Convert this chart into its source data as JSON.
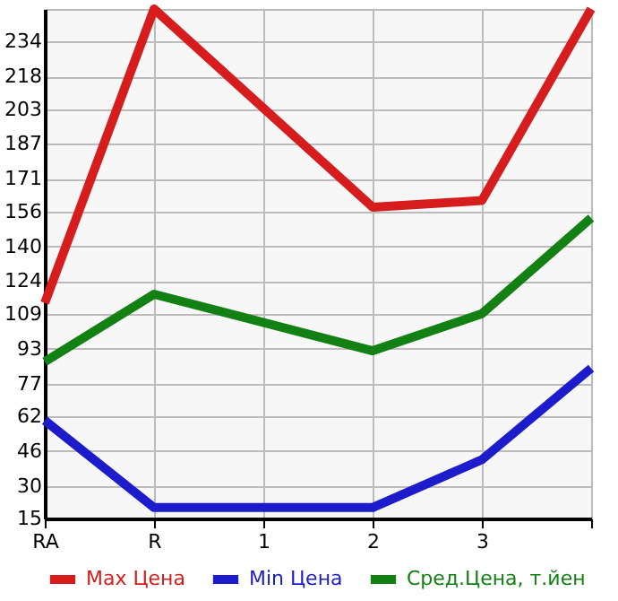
{
  "chart_data": {
    "type": "line",
    "categories": [
      "RA",
      "R",
      "1",
      "2",
      "3",
      null
    ],
    "series": [
      {
        "name": "Max Цена",
        "color": "#d61c1c",
        "values": [
          114,
          249,
          null,
          158,
          161,
          249
        ]
      },
      {
        "name": "Min Цена",
        "color": "#1c1ccc",
        "values": [
          60,
          20,
          null,
          20,
          42,
          84
        ]
      },
      {
        "name": "Сред.Цена, т.йен",
        "color": "#128012",
        "values": [
          87,
          118,
          null,
          92,
          109,
          153
        ]
      }
    ],
    "ylim": [
      15,
      249
    ],
    "yticks": [
      15,
      30,
      46,
      62,
      77,
      93,
      109,
      124,
      140,
      156,
      171,
      187,
      203,
      218,
      234,
      {
        "value": 249,
        "label": null
      }
    ],
    "grid": true,
    "legend": "bottom",
    "marker": "none",
    "line_style": "solid"
  }
}
